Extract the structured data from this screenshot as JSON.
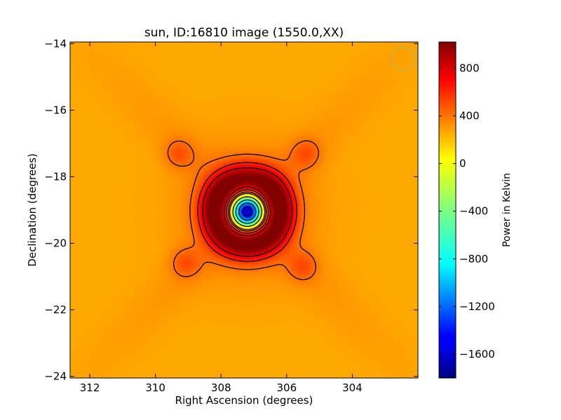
{
  "chart_data": {
    "type": "heatmap",
    "title": "sun, ID:16810 image (1550.0,XX)",
    "xlabel": "Right Ascension (degrees)",
    "ylabel": "Declination (degrees)",
    "xlim": [
      312.6,
      302.0
    ],
    "ylim": [
      -24.05,
      -13.95
    ],
    "x_ticks": [
      312,
      310,
      308,
      306,
      304
    ],
    "x_tick_labels": [
      "312",
      "310",
      "308",
      "306",
      "304"
    ],
    "y_ticks": [
      -14,
      -16,
      -18,
      -20,
      -22,
      -24
    ],
    "y_tick_labels": [
      "−14",
      "−16",
      "−18",
      "−20",
      "−22",
      "−24"
    ],
    "colorbar": {
      "label": "Power in Kelvin",
      "range": [
        -1800,
        1020
      ],
      "ticks": [
        800,
        400,
        0,
        -400,
        -800,
        -1200,
        -1600
      ],
      "tick_labels": [
        "800",
        "400",
        "0",
        "−400",
        "−800",
        "−1200",
        "−1600"
      ],
      "colormap": "jet"
    },
    "background_level": 200,
    "source": {
      "center": [
        307.2,
        -19.05
      ],
      "peak_min": -1750,
      "ring_max": 900,
      "ring_radius_deg": 1.0
    },
    "beam_circle": {
      "center": [
        302.45,
        -14.45
      ],
      "radius_deg": 0.35,
      "color": "#b5b54a"
    },
    "contour_levels_positive": [
      200,
      350,
      550,
      750
    ],
    "contour_levels_negative": [
      -200,
      -600,
      -1000,
      -1400
    ]
  }
}
